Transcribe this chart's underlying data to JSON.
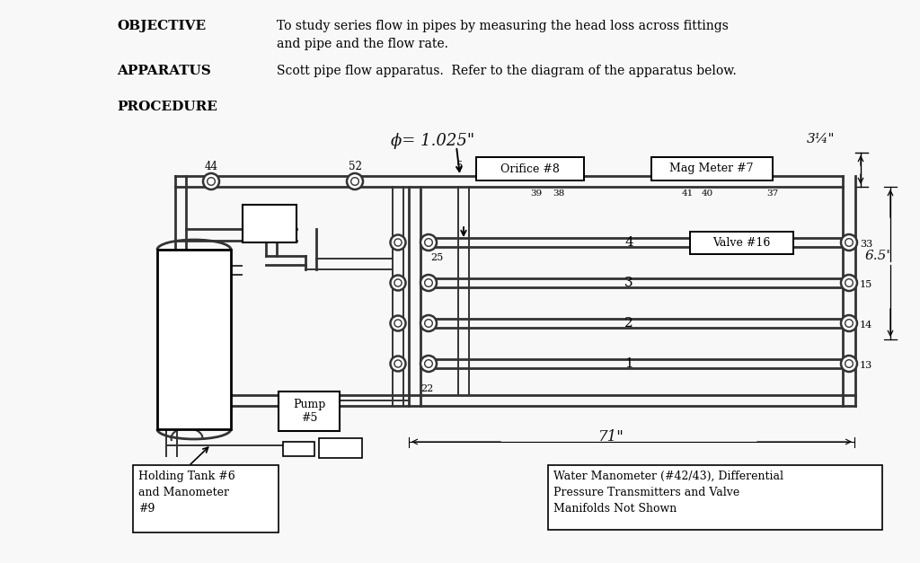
{
  "bg": "#f8f8f8",
  "dk": "#333333",
  "lw_pipe": 2.0,
  "lw_thin": 1.4,
  "objective_label": "OBJECTIVE",
  "objective_text": "To study series flow in pipes by measuring the head loss across fittings\nand pipe and the flow rate.",
  "apparatus_label": "APPARATUS",
  "apparatus_text": "Scott pipe flow apparatus.  Refer to the diagram of the apparatus below.",
  "procedure_label": "PROCEDURE",
  "phi_text": "ϕ= 1.025\"",
  "dim_34": "3¼\"",
  "dim_65": "6.5\"",
  "dim_71": "71\"",
  "box_orifice": "Orifice #8",
  "box_mag": "Mag Meter #7",
  "box_valve": "Valve #16",
  "box_pump": "Pump\n#5",
  "box_holding": "Holding Tank #6\nand Manometer\n#9",
  "box_water": "Water Manometer (#42/43), Differential\nPressure Transmitters and Valve\nManifolds Not Shown"
}
